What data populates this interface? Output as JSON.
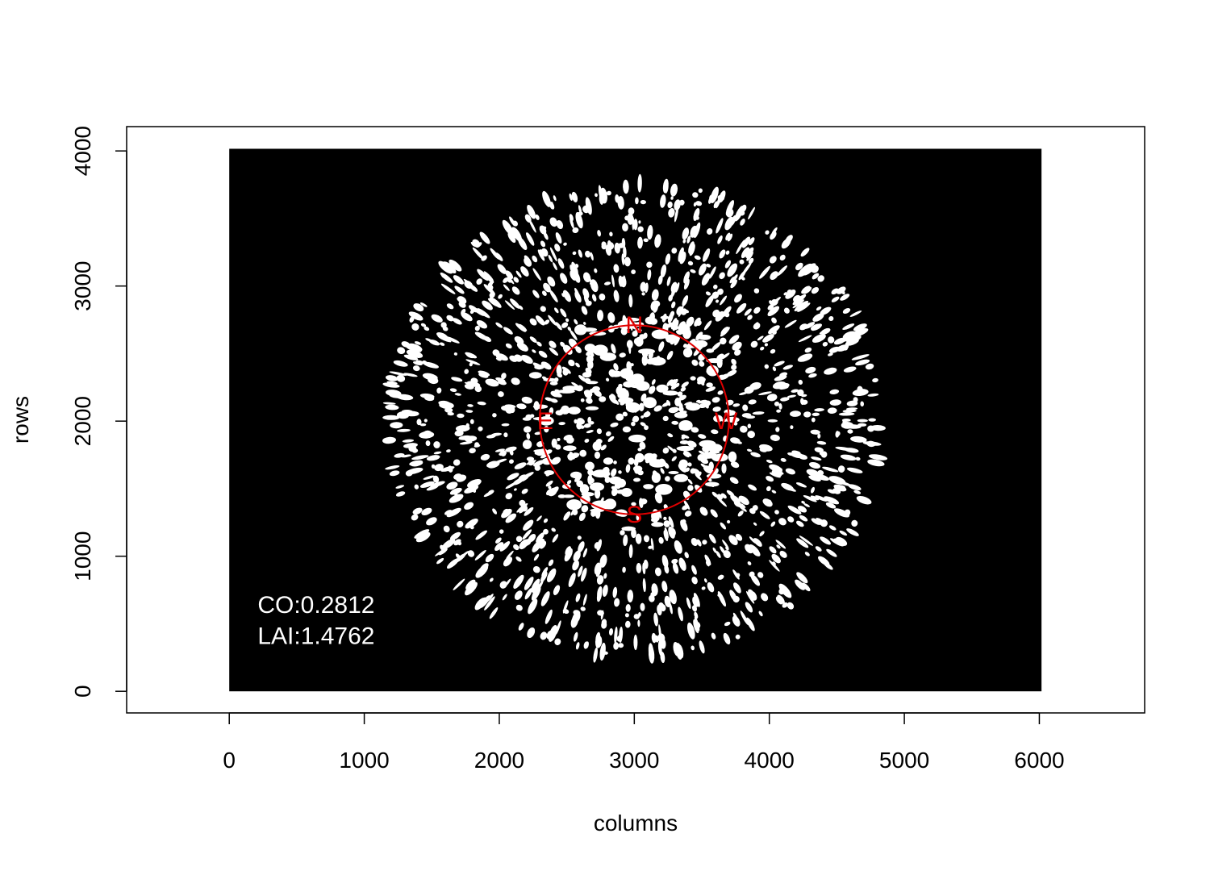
{
  "chart_data": {
    "type": "heatmap",
    "title": "",
    "xlabel": "columns",
    "ylabel": "rows",
    "xlim": [
      -760,
      6780
    ],
    "ylim": [
      -160,
      4180
    ],
    "x_ticks": [
      0,
      1000,
      2000,
      3000,
      4000,
      5000,
      6000
    ],
    "y_ticks": [
      0,
      1000,
      2000,
      3000,
      4000
    ],
    "x_tick_labels": [
      "0",
      "1000",
      "2000",
      "3000",
      "4000",
      "5000",
      "6000"
    ],
    "y_tick_labels": [
      "0",
      "1000",
      "2000",
      "3000",
      "4000"
    ],
    "image_extent": {
      "x": [
        0,
        6016
      ],
      "y": [
        0,
        4016
      ]
    },
    "background_color": "#000000",
    "foreground_color": "#ffffff",
    "fisheye_center": [
      3000,
      2010
    ],
    "fisheye_radius": 1700,
    "compass": {
      "center": [
        3000,
        2010
      ],
      "radius": 700,
      "color": "#e00000",
      "labels": [
        {
          "text": "N",
          "x": 3000,
          "y": 2710
        },
        {
          "text": "E",
          "x": 2340,
          "y": 2000
        },
        {
          "text": "W",
          "x": 3680,
          "y": 2000
        },
        {
          "text": "S",
          "x": 3000,
          "y": 1310
        }
      ]
    },
    "annotations": [
      {
        "text": "CO:0.2812",
        "x": 210,
        "y": 640
      },
      {
        "text": "LAI:1.4762",
        "x": 210,
        "y": 410
      }
    ],
    "grid": false,
    "legend": "none"
  }
}
